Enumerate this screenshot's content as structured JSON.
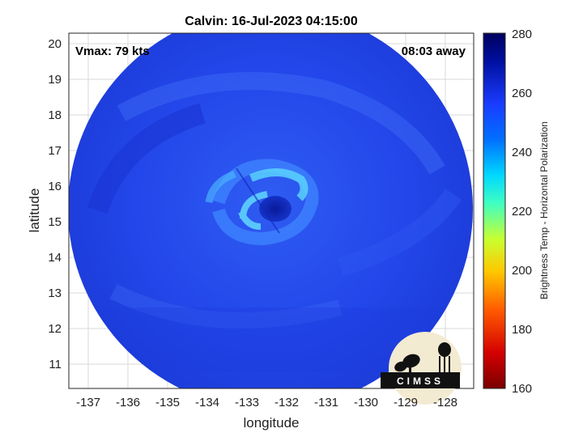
{
  "plot": {
    "title": "Calvin: 16-Jul-2023 04:15:00",
    "vmax_label": "Vmax: 79 kts",
    "time_away_label": "08:03 away",
    "xlabel": "longitude",
    "ylabel": "latitude",
    "x_ticks": [
      "-137",
      "-136",
      "-135",
      "-134",
      "-133",
      "-132",
      "-131",
      "-130",
      "-129",
      "-128"
    ],
    "y_ticks": [
      "20",
      "19",
      "18",
      "17",
      "16",
      "15",
      "14",
      "13",
      "12",
      "11"
    ]
  },
  "colorbar": {
    "label": "Brightness Temp - Horizontal Polarization",
    "ticks": [
      "280",
      "260",
      "240",
      "220",
      "200",
      "180",
      "160"
    ],
    "colors": [
      "#7a0000",
      "#d40000",
      "#ff5a00",
      "#ffc800",
      "#c8ff30",
      "#40ffc0",
      "#00d8ff",
      "#0070ff",
      "#1a3cff",
      "#0010a0",
      "#000060"
    ]
  },
  "logo": {
    "text": "CIMSS"
  },
  "image_colors": {
    "outer_blue": "#1f3fe6",
    "mid_blue": "#2a55f0",
    "eyewall_cyan": "#40c8ff",
    "eye_dark": "#0a1aa0"
  }
}
